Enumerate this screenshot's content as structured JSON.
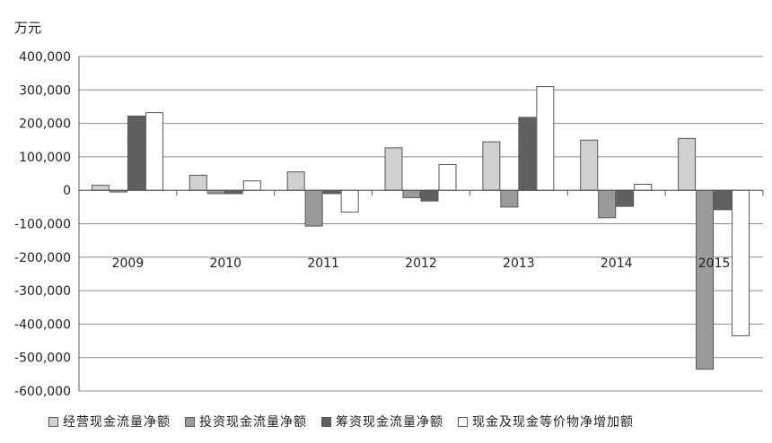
{
  "chart_data": {
    "type": "bar",
    "unit_label": "万元",
    "categories": [
      "2009",
      "2010",
      "2011",
      "2012",
      "2013",
      "2014",
      "2015"
    ],
    "ylim": [
      -600000,
      400000
    ],
    "yticks": [
      400000,
      300000,
      200000,
      100000,
      0,
      -100000,
      -200000,
      -300000,
      -400000,
      -500000,
      -600000
    ],
    "ytick_labels": [
      "400,000",
      "300,000",
      "200,000",
      "100,000",
      "0",
      "-100,000",
      "-200,000",
      "-300,000",
      "-400,000",
      "-500,000",
      "-600,000"
    ],
    "grid": true,
    "legend_position": "bottom",
    "series": [
      {
        "name": "经营现金流量净额",
        "color": "#d0d0d0",
        "values": [
          15000,
          45000,
          55000,
          127000,
          145000,
          150000,
          155000
        ]
      },
      {
        "name": "投资现金流量净额",
        "color": "#9a9a9a",
        "values": [
          -5000,
          -10000,
          -107000,
          -22000,
          -50000,
          -82000,
          -535000
        ]
      },
      {
        "name": "筹资现金流量净额",
        "color": "#606060",
        "values": [
          222000,
          -10000,
          -10000,
          -32000,
          218000,
          -48000,
          -58000
        ]
      },
      {
        "name": "现金及现金等价物净增加额",
        "color": "#ffffff",
        "values": [
          232000,
          28000,
          -65000,
          77000,
          310000,
          18000,
          -435000
        ]
      }
    ]
  }
}
